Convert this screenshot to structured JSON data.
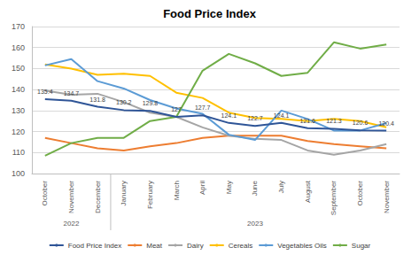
{
  "chart_data": {
    "type": "line",
    "title": "Food Price Index",
    "categories": [
      "October",
      "November",
      "December",
      "January",
      "February",
      "March",
      "April",
      "May",
      "June",
      "July",
      "August",
      "September",
      "October",
      "November"
    ],
    "category_groups": [
      {
        "label": "2022",
        "count": 3
      },
      {
        "label": "2023",
        "count": 11
      }
    ],
    "series": [
      {
        "name": "Food Price Index",
        "color": "#2f5597",
        "data_labels": true,
        "values": [
          135.4,
          134.7,
          131.8,
          130.2,
          129.8,
          127,
          127.7,
          124.1,
          122.7,
          124.1,
          121.6,
          121.3,
          120.6,
          120.4
        ]
      },
      {
        "name": "Meat",
        "color": "#ed7d31",
        "values": [
          117,
          114.5,
          112,
          111,
          113,
          114.5,
          117,
          118,
          118,
          118,
          115.5,
          114,
          113,
          112
        ]
      },
      {
        "name": "Dairy",
        "color": "#a5a5a5",
        "values": [
          139.5,
          137.5,
          138,
          134,
          129,
          127,
          122,
          118,
          116.5,
          116,
          111,
          109,
          111,
          114
        ]
      },
      {
        "name": "Cereals",
        "color": "#ffc000",
        "values": [
          152,
          150,
          147,
          147.5,
          146.5,
          138.5,
          136,
          129,
          126.5,
          126,
          125,
          126,
          125,
          122
        ]
      },
      {
        "name": "Vegetables Oils",
        "color": "#5b9bd5",
        "values": [
          151.5,
          154.5,
          144,
          140.5,
          135,
          131,
          128.5,
          118.5,
          116,
          130,
          126,
          120.5,
          120.5,
          124
        ]
      },
      {
        "name": "Sugar",
        "color": "#70ad47",
        "values": [
          108.5,
          114.5,
          117,
          117,
          125,
          127,
          149,
          157,
          152.5,
          146.5,
          148,
          162.5,
          159.5,
          161.5
        ]
      }
    ],
    "ylim": [
      100,
      170
    ],
    "yticks": [
      100,
      110,
      120,
      130,
      140,
      150,
      160,
      170
    ],
    "grid": true,
    "legend": "bottom"
  }
}
